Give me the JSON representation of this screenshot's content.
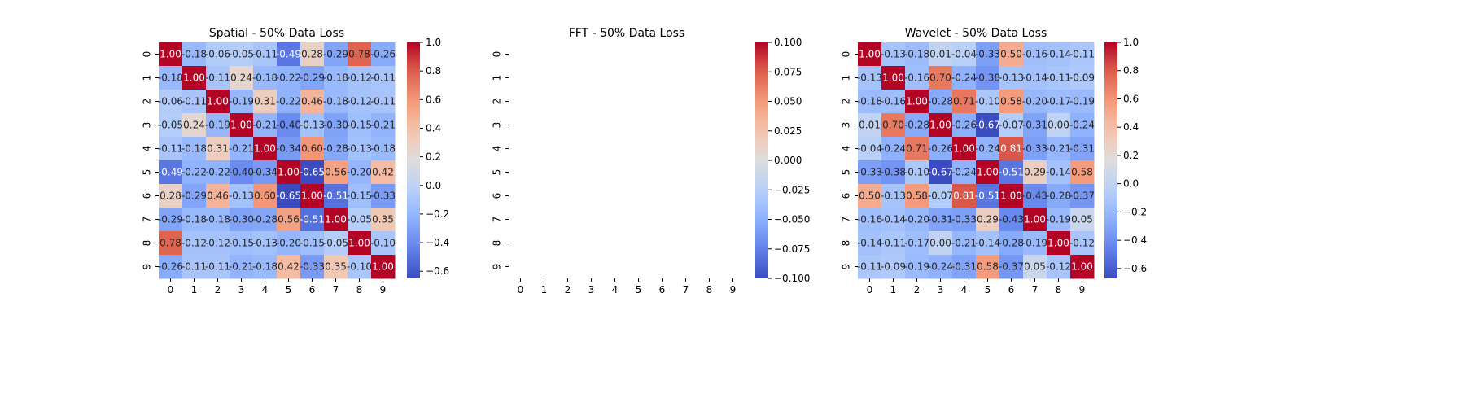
{
  "chart_data": [
    {
      "type": "heatmap",
      "title": "Spatial - 50% Data Loss",
      "x_ticks": [
        "0",
        "1",
        "2",
        "3",
        "4",
        "5",
        "6",
        "7",
        "8",
        "9"
      ],
      "y_ticks": [
        "0",
        "1",
        "2",
        "3",
        "4",
        "5",
        "6",
        "7",
        "8",
        "9"
      ],
      "colormap": "coolwarm",
      "vmin": -0.65,
      "vmax": 1.0,
      "colorbar_ticks": [
        "−0.6",
        "−0.4",
        "−0.2",
        "0.0",
        "0.2",
        "0.4",
        "0.6",
        "0.8",
        "1.0"
      ],
      "colorbar_values": [
        -0.6,
        -0.4,
        -0.2,
        0.0,
        0.2,
        0.4,
        0.6,
        0.8,
        1.0
      ],
      "annotate": true,
      "values": [
        [
          1.0,
          -0.18,
          -0.06,
          -0.05,
          -0.11,
          -0.49,
          0.28,
          -0.29,
          0.78,
          -0.26
        ],
        [
          -0.18,
          1.0,
          -0.11,
          0.24,
          -0.18,
          -0.22,
          -0.29,
          -0.18,
          -0.12,
          -0.11
        ],
        [
          -0.06,
          -0.11,
          1.0,
          -0.19,
          0.31,
          -0.22,
          0.46,
          -0.18,
          -0.12,
          -0.11
        ],
        [
          -0.05,
          0.24,
          -0.19,
          1.0,
          -0.21,
          -0.4,
          -0.13,
          -0.3,
          -0.15,
          -0.21
        ],
        [
          -0.11,
          -0.18,
          0.31,
          -0.21,
          1.0,
          -0.34,
          0.6,
          -0.28,
          -0.13,
          -0.18
        ],
        [
          -0.49,
          -0.22,
          -0.22,
          -0.4,
          -0.34,
          1.0,
          -0.65,
          0.56,
          -0.2,
          0.42
        ],
        [
          0.28,
          -0.29,
          0.46,
          -0.13,
          0.6,
          -0.65,
          1.0,
          -0.51,
          -0.15,
          -0.33
        ],
        [
          -0.29,
          -0.18,
          -0.18,
          -0.3,
          -0.28,
          0.56,
          -0.51,
          1.0,
          -0.05,
          0.35
        ],
        [
          0.78,
          -0.12,
          -0.12,
          -0.15,
          -0.13,
          -0.2,
          -0.15,
          -0.05,
          1.0,
          -0.1
        ],
        [
          -0.26,
          -0.11,
          -0.11,
          -0.21,
          -0.18,
          0.42,
          -0.33,
          0.35,
          -0.1,
          1.0
        ]
      ]
    },
    {
      "type": "heatmap",
      "title": "FFT - 50% Data Loss",
      "x_ticks": [
        "0",
        "1",
        "2",
        "3",
        "4",
        "5",
        "6",
        "7",
        "8",
        "9"
      ],
      "y_ticks": [
        "0",
        "1",
        "2",
        "3",
        "4",
        "5",
        "6",
        "7",
        "8",
        "9"
      ],
      "colormap": "coolwarm",
      "vmin": -0.1,
      "vmax": 0.1,
      "colorbar_ticks": [
        "−0.100",
        "−0.075",
        "−0.050",
        "−0.025",
        "0.000",
        "0.025",
        "0.050",
        "0.075",
        "0.100"
      ],
      "colorbar_values": [
        -0.1,
        -0.075,
        -0.05,
        -0.025,
        0.0,
        0.025,
        0.05,
        0.075,
        0.1
      ],
      "annotate": false,
      "values": []
    },
    {
      "type": "heatmap",
      "title": "Wavelet - 50% Data Loss",
      "x_ticks": [
        "0",
        "1",
        "2",
        "3",
        "4",
        "5",
        "6",
        "7",
        "8",
        "9"
      ],
      "y_ticks": [
        "0",
        "1",
        "2",
        "3",
        "4",
        "5",
        "6",
        "7",
        "8",
        "9"
      ],
      "colormap": "coolwarm",
      "vmin": -0.67,
      "vmax": 1.0,
      "colorbar_ticks": [
        "−0.6",
        "−0.4",
        "−0.2",
        "0.0",
        "0.2",
        "0.4",
        "0.6",
        "0.8",
        "1.0"
      ],
      "colorbar_values": [
        -0.6,
        -0.4,
        -0.2,
        0.0,
        0.2,
        0.4,
        0.6,
        0.8,
        1.0
      ],
      "annotate": true,
      "values": [
        [
          1.0,
          -0.13,
          -0.18,
          0.01,
          -0.04,
          -0.33,
          0.5,
          -0.16,
          -0.14,
          -0.11
        ],
        [
          -0.13,
          1.0,
          -0.16,
          0.7,
          -0.24,
          -0.38,
          -0.13,
          -0.14,
          -0.11,
          -0.09
        ],
        [
          -0.18,
          -0.16,
          1.0,
          -0.28,
          0.71,
          -0.1,
          0.58,
          -0.2,
          -0.17,
          -0.19
        ],
        [
          0.01,
          0.7,
          -0.28,
          1.0,
          -0.26,
          -0.67,
          -0.07,
          -0.31,
          -0.0,
          -0.24
        ],
        [
          -0.04,
          -0.24,
          0.71,
          -0.26,
          1.0,
          -0.24,
          0.81,
          -0.33,
          -0.21,
          -0.31
        ],
        [
          -0.33,
          -0.38,
          -0.1,
          -0.67,
          -0.24,
          1.0,
          -0.51,
          0.29,
          -0.14,
          0.58
        ],
        [
          0.5,
          -0.13,
          0.58,
          -0.07,
          0.81,
          -0.51,
          1.0,
          -0.43,
          -0.28,
          -0.37
        ],
        [
          -0.16,
          -0.14,
          -0.2,
          -0.31,
          -0.33,
          0.29,
          -0.43,
          1.0,
          -0.19,
          0.05
        ],
        [
          -0.14,
          -0.11,
          -0.17,
          -0.0,
          -0.21,
          -0.14,
          -0.28,
          -0.19,
          1.0,
          -0.12
        ],
        [
          -0.11,
          -0.09,
          -0.19,
          -0.24,
          -0.31,
          0.58,
          -0.37,
          0.05,
          -0.12,
          1.0
        ]
      ]
    }
  ]
}
